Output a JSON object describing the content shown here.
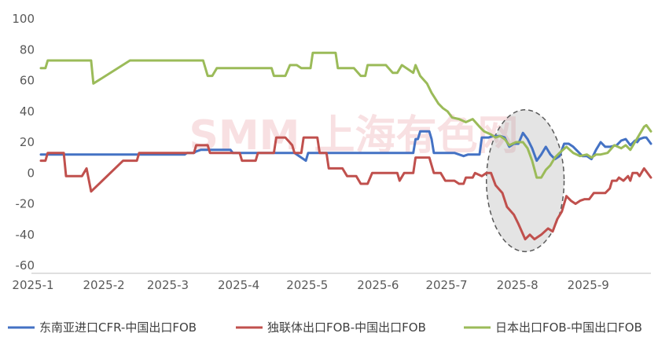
{
  "chart_data": {
    "type": "line",
    "title": "",
    "xlabel": "",
    "ylabel": "",
    "ylim": [
      -60,
      100
    ],
    "yticks": [
      100,
      80,
      60,
      40,
      20,
      0,
      -20,
      -40,
      -60
    ],
    "ytick_labels": [
      "100",
      "80",
      "60",
      "40",
      "20",
      "0",
      "-20",
      "-40",
      "-60"
    ],
    "x_domain": [
      "2025-01-01",
      "2025-09-25"
    ],
    "xticks": [
      "2025-01-01",
      "2025-02-01",
      "2025-03-01",
      "2025-04-01",
      "2025-05-01",
      "2025-06-01",
      "2025-07-01",
      "2025-08-01",
      "2025-09-01"
    ],
    "xtick_labels": [
      "2025-1",
      "2025-2",
      "2025-3",
      "2025-4",
      "2025-5",
      "2025-6",
      "2025-7",
      "2025-8",
      "2025-9"
    ],
    "grid": false,
    "legend_position": "bottom",
    "annotations": [
      {
        "type": "dashed-ellipse",
        "x_range": [
          "2025-07-15",
          "2025-08-18"
        ],
        "y_range": [
          -51,
          41
        ]
      }
    ],
    "watermark": "SMM 上海有色网",
    "series": [
      {
        "name": "东南亚进口CFR-中国出口FOB",
        "color": "#4472c4",
        "points": [
          [
            "2025-01-01",
            12
          ],
          [
            "2025-03-05",
            12
          ],
          [
            "2025-03-06",
            13
          ],
          [
            "2025-03-09",
            13
          ],
          [
            "2025-03-10",
            14
          ],
          [
            "2025-03-12",
            15
          ],
          [
            "2025-03-25",
            15
          ],
          [
            "2025-03-26",
            13
          ],
          [
            "2025-04-22",
            13
          ],
          [
            "2025-04-27",
            8
          ],
          [
            "2025-04-28",
            13
          ],
          [
            "2025-06-09",
            13
          ],
          [
            "2025-06-10",
            13
          ],
          [
            "2025-06-13",
            13
          ],
          [
            "2025-06-14",
            22
          ],
          [
            "2025-06-15",
            22
          ],
          [
            "2025-06-16",
            27
          ],
          [
            "2025-06-20",
            27
          ],
          [
            "2025-06-21",
            22
          ],
          [
            "2025-06-22",
            13
          ],
          [
            "2025-06-25",
            13
          ],
          [
            "2025-07-01",
            13
          ],
          [
            "2025-07-03",
            12
          ],
          [
            "2025-07-05",
            11
          ],
          [
            "2025-07-07",
            12
          ],
          [
            "2025-07-10",
            12
          ],
          [
            "2025-07-12",
            12
          ],
          [
            "2025-07-13",
            23
          ],
          [
            "2025-07-16",
            23
          ],
          [
            "2025-07-18",
            24
          ],
          [
            "2025-07-21",
            24
          ],
          [
            "2025-07-23",
            23
          ],
          [
            "2025-07-25",
            17
          ],
          [
            "2025-07-27",
            19
          ],
          [
            "2025-07-29",
            19
          ],
          [
            "2025-07-31",
            26
          ],
          [
            "2025-08-02",
            22
          ],
          [
            "2025-08-04",
            16
          ],
          [
            "2025-08-06",
            8
          ],
          [
            "2025-08-08",
            12
          ],
          [
            "2025-08-10",
            17
          ],
          [
            "2025-08-12",
            12
          ],
          [
            "2025-08-14",
            9
          ],
          [
            "2025-08-16",
            11
          ],
          [
            "2025-08-18",
            19
          ],
          [
            "2025-08-20",
            19
          ],
          [
            "2025-08-22",
            17
          ],
          [
            "2025-08-24",
            14
          ],
          [
            "2025-08-26",
            11
          ],
          [
            "2025-08-28",
            11
          ],
          [
            "2025-08-30",
            9
          ],
          [
            "2025-09-01",
            15
          ],
          [
            "2025-09-03",
            20
          ],
          [
            "2025-09-05",
            17
          ],
          [
            "2025-09-07",
            17
          ],
          [
            "2025-09-10",
            18
          ],
          [
            "2025-09-12",
            21
          ],
          [
            "2025-09-14",
            22
          ],
          [
            "2025-09-16",
            18
          ],
          [
            "2025-09-18",
            21
          ],
          [
            "2025-09-19",
            20
          ],
          [
            "2025-09-20",
            22
          ],
          [
            "2025-09-22",
            23
          ],
          [
            "2025-09-23",
            23
          ],
          [
            "2025-09-25",
            19
          ]
        ]
      },
      {
        "name": "独联体出口FOB-中国出口FOB",
        "color": "#c0504d",
        "points": [
          [
            "2025-01-01",
            8
          ],
          [
            "2025-01-03",
            8
          ],
          [
            "2025-01-04",
            13
          ],
          [
            "2025-01-11",
            13
          ],
          [
            "2025-01-12",
            -2
          ],
          [
            "2025-01-19",
            -2
          ],
          [
            "2025-01-21",
            3
          ],
          [
            "2025-01-23",
            -12
          ],
          [
            "2025-02-06",
            8
          ],
          [
            "2025-02-12",
            8
          ],
          [
            "2025-02-13",
            13
          ],
          [
            "2025-03-09",
            13
          ],
          [
            "2025-03-10",
            18
          ],
          [
            "2025-03-15",
            18
          ],
          [
            "2025-03-16",
            13
          ],
          [
            "2025-03-29",
            13
          ],
          [
            "2025-03-30",
            8
          ],
          [
            "2025-04-05",
            8
          ],
          [
            "2025-04-06",
            13
          ],
          [
            "2025-04-13",
            13
          ],
          [
            "2025-04-14",
            23
          ],
          [
            "2025-04-18",
            23
          ],
          [
            "2025-04-21",
            18
          ],
          [
            "2025-04-22",
            13
          ],
          [
            "2025-04-25",
            13
          ],
          [
            "2025-04-26",
            23
          ],
          [
            "2025-05-02",
            23
          ],
          [
            "2025-05-03",
            13
          ],
          [
            "2025-05-06",
            13
          ],
          [
            "2025-05-07",
            3
          ],
          [
            "2025-05-13",
            3
          ],
          [
            "2025-05-15",
            -2
          ],
          [
            "2025-05-19",
            -2
          ],
          [
            "2025-05-21",
            -7
          ],
          [
            "2025-05-24",
            -7
          ],
          [
            "2025-05-26",
            0
          ],
          [
            "2025-06-06",
            0
          ],
          [
            "2025-06-07",
            -5
          ],
          [
            "2025-06-09",
            0
          ],
          [
            "2025-06-13",
            0
          ],
          [
            "2025-06-14",
            10
          ],
          [
            "2025-06-20",
            10
          ],
          [
            "2025-06-22",
            0
          ],
          [
            "2025-06-25",
            0
          ],
          [
            "2025-06-27",
            -5
          ],
          [
            "2025-07-01",
            -5
          ],
          [
            "2025-07-03",
            -7
          ],
          [
            "2025-07-05",
            -7
          ],
          [
            "2025-07-06",
            -3
          ],
          [
            "2025-07-09",
            -3
          ],
          [
            "2025-07-10",
            0
          ],
          [
            "2025-07-13",
            -2
          ],
          [
            "2025-07-15",
            0
          ],
          [
            "2025-07-17",
            0
          ],
          [
            "2025-07-19",
            -8
          ],
          [
            "2025-07-22",
            -13
          ],
          [
            "2025-07-24",
            -22
          ],
          [
            "2025-07-27",
            -27
          ],
          [
            "2025-07-29",
            -33
          ],
          [
            "2025-08-01",
            -43
          ],
          [
            "2025-08-03",
            -40
          ],
          [
            "2025-08-05",
            -43
          ],
          [
            "2025-08-08",
            -40
          ],
          [
            "2025-08-11",
            -36
          ],
          [
            "2025-08-13",
            -38
          ],
          [
            "2025-08-15",
            -30
          ],
          [
            "2025-08-17",
            -25
          ],
          [
            "2025-08-19",
            -15
          ],
          [
            "2025-08-21",
            -18
          ],
          [
            "2025-08-23",
            -20
          ],
          [
            "2025-08-25",
            -18
          ],
          [
            "2025-08-27",
            -17
          ],
          [
            "2025-08-29",
            -17
          ],
          [
            "2025-08-31",
            -13
          ],
          [
            "2025-09-05",
            -13
          ],
          [
            "2025-09-07",
            -10
          ],
          [
            "2025-09-08",
            -5
          ],
          [
            "2025-09-10",
            -5
          ],
          [
            "2025-09-11",
            -3
          ],
          [
            "2025-09-13",
            -5
          ],
          [
            "2025-09-15",
            -2
          ],
          [
            "2025-09-16",
            -5
          ],
          [
            "2025-09-17",
            0
          ],
          [
            "2025-09-19",
            0
          ],
          [
            "2025-09-20",
            -2
          ],
          [
            "2025-09-22",
            3
          ],
          [
            "2025-09-25",
            -3
          ]
        ]
      },
      {
        "name": "日本出口FOB-中国出口FOB",
        "color": "#9bbb59",
        "points": [
          [
            "2025-01-01",
            68
          ],
          [
            "2025-01-03",
            68
          ],
          [
            "2025-01-04",
            73
          ],
          [
            "2025-01-23",
            73
          ],
          [
            "2025-01-24",
            58
          ],
          [
            "2025-02-09",
            73
          ],
          [
            "2025-03-13",
            73
          ],
          [
            "2025-03-15",
            63
          ],
          [
            "2025-03-17",
            63
          ],
          [
            "2025-03-19",
            68
          ],
          [
            "2025-04-12",
            68
          ],
          [
            "2025-04-13",
            63
          ],
          [
            "2025-04-18",
            63
          ],
          [
            "2025-04-20",
            70
          ],
          [
            "2025-04-23",
            70
          ],
          [
            "2025-04-25",
            68
          ],
          [
            "2025-04-29",
            68
          ],
          [
            "2025-04-30",
            78
          ],
          [
            "2025-05-10",
            78
          ],
          [
            "2025-05-11",
            68
          ],
          [
            "2025-05-18",
            68
          ],
          [
            "2025-05-21",
            63
          ],
          [
            "2025-05-23",
            63
          ],
          [
            "2025-05-24",
            70
          ],
          [
            "2025-06-01",
            70
          ],
          [
            "2025-06-04",
            65
          ],
          [
            "2025-06-06",
            65
          ],
          [
            "2025-06-08",
            70
          ],
          [
            "2025-06-11",
            67
          ],
          [
            "2025-06-13",
            65
          ],
          [
            "2025-06-14",
            70
          ],
          [
            "2025-06-16",
            63
          ],
          [
            "2025-06-19",
            58
          ],
          [
            "2025-06-21",
            52
          ],
          [
            "2025-06-24",
            45
          ],
          [
            "2025-06-26",
            42
          ],
          [
            "2025-06-28",
            40
          ],
          [
            "2025-06-30",
            36
          ],
          [
            "2025-07-03",
            35
          ],
          [
            "2025-07-06",
            33
          ],
          [
            "2025-07-09",
            35
          ],
          [
            "2025-07-12",
            30
          ],
          [
            "2025-07-14",
            27
          ],
          [
            "2025-07-17",
            25
          ],
          [
            "2025-07-19",
            23
          ],
          [
            "2025-07-21",
            24
          ],
          [
            "2025-07-23",
            22
          ],
          [
            "2025-07-25",
            18
          ],
          [
            "2025-07-28",
            20
          ],
          [
            "2025-07-31",
            20
          ],
          [
            "2025-08-02",
            16
          ],
          [
            "2025-08-04",
            8
          ],
          [
            "2025-08-06",
            -3
          ],
          [
            "2025-08-08",
            -3
          ],
          [
            "2025-08-10",
            2
          ],
          [
            "2025-08-12",
            5
          ],
          [
            "2025-08-14",
            10
          ],
          [
            "2025-08-16",
            13
          ],
          [
            "2025-08-19",
            17
          ],
          [
            "2025-08-22",
            13
          ],
          [
            "2025-08-25",
            11
          ],
          [
            "2025-08-28",
            12
          ],
          [
            "2025-08-30",
            10
          ],
          [
            "2025-09-01",
            12
          ],
          [
            "2025-09-03",
            12
          ],
          [
            "2025-09-06",
            13
          ],
          [
            "2025-09-09",
            18
          ],
          [
            "2025-09-12",
            16
          ],
          [
            "2025-09-14",
            18
          ],
          [
            "2025-09-16",
            15
          ],
          [
            "2025-09-18",
            20
          ],
          [
            "2025-09-20",
            25
          ],
          [
            "2025-09-22",
            30
          ],
          [
            "2025-09-23",
            31
          ],
          [
            "2025-09-25",
            27
          ]
        ]
      }
    ]
  }
}
